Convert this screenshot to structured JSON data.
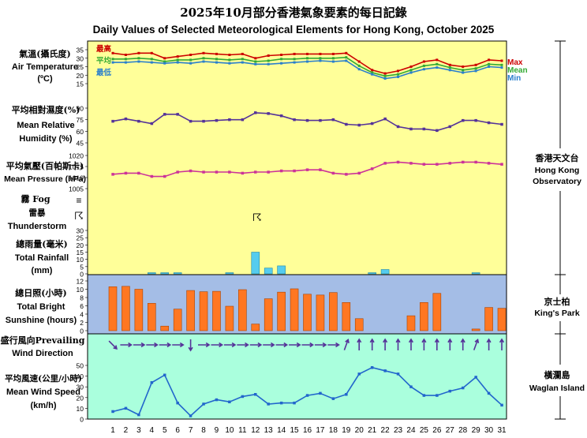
{
  "title_zh": "2025年10月部分香港氣象要素的每日記錄",
  "title_en": "Daily Values of Selected Meteorological Elements for Hong Kong, October 2025",
  "panels": {
    "temperature": {
      "label_zh": "氣溫(攝氏度)",
      "label_en": "Air Temperature",
      "unit": "(ºC)",
      "legend": {
        "max_zh": "最高",
        "mean_zh": "平均",
        "min_zh": "最低",
        "max_en": "Max",
        "mean_en": "Mean",
        "min_en": "Min"
      }
    },
    "humidity": {
      "label_zh": "平均相對濕度(%)",
      "label_en1": "Mean Relative",
      "label_en2": "Humidity  (%)"
    },
    "pressure": {
      "label_zh": "平均氣壓(百帕斯卡)",
      "label_en": "Mean Pressure (hPa)"
    },
    "fog": {
      "label_zh": "霧 Fog",
      "symbol": "≡"
    },
    "thunder": {
      "label_zh": "雷暴",
      "label_en": "Thunderstorm",
      "symbol": "☈"
    },
    "rainfall": {
      "label_zh": "總雨量(毫米)",
      "label_en1": "Total Rainfall",
      "label_en2": "(mm)"
    },
    "sunshine": {
      "label_zh": "總日照(小時)",
      "label_en1": "Total Bright",
      "label_en2": "Sunshine  (hours)"
    },
    "wind_dir": {
      "label_zh": "盛行風向Prevailing",
      "label_en": "Wind Direction"
    },
    "wind_speed": {
      "label_zh": "平均風速(公里/小時)",
      "label_en1": "Mean Wind Speed",
      "label_en2": "(km/h)"
    }
  },
  "stations": {
    "hko": {
      "zh": "香港天文台",
      "en1": "Hong Kong",
      "en2": "Observatory"
    },
    "kp": {
      "zh": "京士柏",
      "en": "King's Park"
    },
    "wgl": {
      "zh": "橫瀾島",
      "en": "Waglan Island"
    }
  },
  "colors": {
    "yellow": "#ffff99",
    "blue": "#a4bde6",
    "green": "#aaffdd",
    "max": "#cc0000",
    "mean": "#33aa33",
    "min": "#2a7fcc",
    "hum": "#553399",
    "pres": "#cc3399",
    "bar": "#ff7722",
    "rainbar": "#55ccee"
  },
  "chart_data": {
    "type": "multi-panel",
    "days": [
      1,
      2,
      3,
      4,
      5,
      6,
      7,
      8,
      9,
      10,
      11,
      12,
      13,
      14,
      15,
      16,
      17,
      18,
      19,
      20,
      21,
      22,
      23,
      24,
      25,
      26,
      27,
      28,
      29,
      30,
      31
    ],
    "temperature": {
      "ylim": [
        15,
        35
      ],
      "ticks": [
        15,
        20,
        25,
        30,
        35
      ],
      "max": [
        33,
        32,
        33,
        33,
        30,
        31,
        32,
        33,
        32.5,
        32,
        32.5,
        30,
        31.5,
        32,
        32.5,
        32.5,
        32.5,
        32.5,
        33,
        28,
        23,
        21,
        22.5,
        25,
        28,
        29,
        26,
        25,
        26,
        29,
        28.5
      ],
      "mean": [
        29.5,
        29.5,
        30,
        29.5,
        28,
        29,
        29,
        30,
        29.5,
        29,
        29.5,
        28,
        28.5,
        29.5,
        29.5,
        30,
        30,
        30,
        30.5,
        25.5,
        21.5,
        19.5,
        20.5,
        23,
        25.5,
        26.5,
        24.5,
        23,
        24,
        26.5,
        26
      ],
      "min": [
        27.5,
        27.5,
        28,
        27.5,
        27,
        27.5,
        27,
        28,
        27.5,
        27,
        27.5,
        26.5,
        26.5,
        27,
        27.5,
        28,
        28.5,
        28,
        28.5,
        23.5,
        20.5,
        18,
        19,
        21.5,
        23.5,
        24.5,
        23,
        21.5,
        22.5,
        25,
        24.5
      ]
    },
    "humidity": {
      "ylim": [
        45,
        90
      ],
      "ticks": [
        45,
        60,
        75,
        90
      ],
      "values": [
        73,
        76,
        73,
        70,
        82,
        82,
        73,
        73,
        74,
        75,
        75,
        84,
        83,
        80,
        75,
        74,
        74,
        75,
        69,
        68,
        70,
        76,
        66,
        63,
        63,
        61,
        66,
        74,
        74,
        71,
        69
      ]
    },
    "pressure": {
      "ylim": [
        1005,
        1020
      ],
      "ticks": [
        1005,
        1010,
        1015,
        1020
      ],
      "values": [
        1011.5,
        1012,
        1012,
        1010.5,
        1010.5,
        1012.5,
        1013,
        1012.5,
        1012.5,
        1012.5,
        1012,
        1012.5,
        1012.5,
        1013,
        1013,
        1013.5,
        1013.5,
        1012,
        1011.5,
        1012,
        1014,
        1016.5,
        1017,
        1016.5,
        1016,
        1016,
        1016.5,
        1017,
        1017,
        1016.5,
        1016
      ]
    },
    "fog_days": [],
    "thunderstorm_days": [
      12
    ],
    "rainfall": {
      "ylim": [
        0,
        30
      ],
      "ticks": [
        0,
        5,
        10,
        15,
        20,
        25,
        30
      ],
      "values": [
        0,
        0,
        0,
        0.6,
        0.8,
        0.6,
        0,
        0,
        0,
        0.3,
        0,
        15,
        4,
        5.5,
        0,
        0,
        0,
        0,
        0,
        0,
        0.2,
        3,
        0,
        0,
        0,
        0,
        0,
        0,
        0.3,
        0,
        0
      ]
    },
    "sunshine": {
      "ylim": [
        0,
        12
      ],
      "ticks": [
        0,
        2,
        4,
        6,
        8,
        10,
        12
      ],
      "values": [
        10.6,
        10.7,
        10,
        6.6,
        1.1,
        5.2,
        9.7,
        9.4,
        9.5,
        5.9,
        9.9,
        1.6,
        7.7,
        9.3,
        10.1,
        8.8,
        8.6,
        9.2,
        6.8,
        2.9,
        0,
        0,
        0,
        3.6,
        6.8,
        9,
        0,
        0,
        0.4,
        5.6,
        5.4
      ]
    },
    "wind_direction_deg": [
      315,
      270,
      270,
      270,
      270,
      270,
      360,
      270,
      270,
      270,
      270,
      270,
      270,
      270,
      270,
      270,
      270,
      270,
      200,
      180,
      180,
      180,
      180,
      180,
      180,
      180,
      180,
      180,
      200,
      180,
      180
    ],
    "wind_speed": {
      "ylim": [
        0,
        50
      ],
      "ticks": [
        0,
        10,
        20,
        30,
        40,
        50
      ],
      "values": [
        7,
        10,
        4,
        34,
        41,
        15,
        3,
        14,
        18,
        16,
        21,
        23,
        14,
        15,
        15,
        22,
        24,
        19,
        23,
        42,
        48,
        45,
        42,
        30,
        22,
        22,
        26,
        29,
        39,
        24,
        13
      ]
    }
  }
}
